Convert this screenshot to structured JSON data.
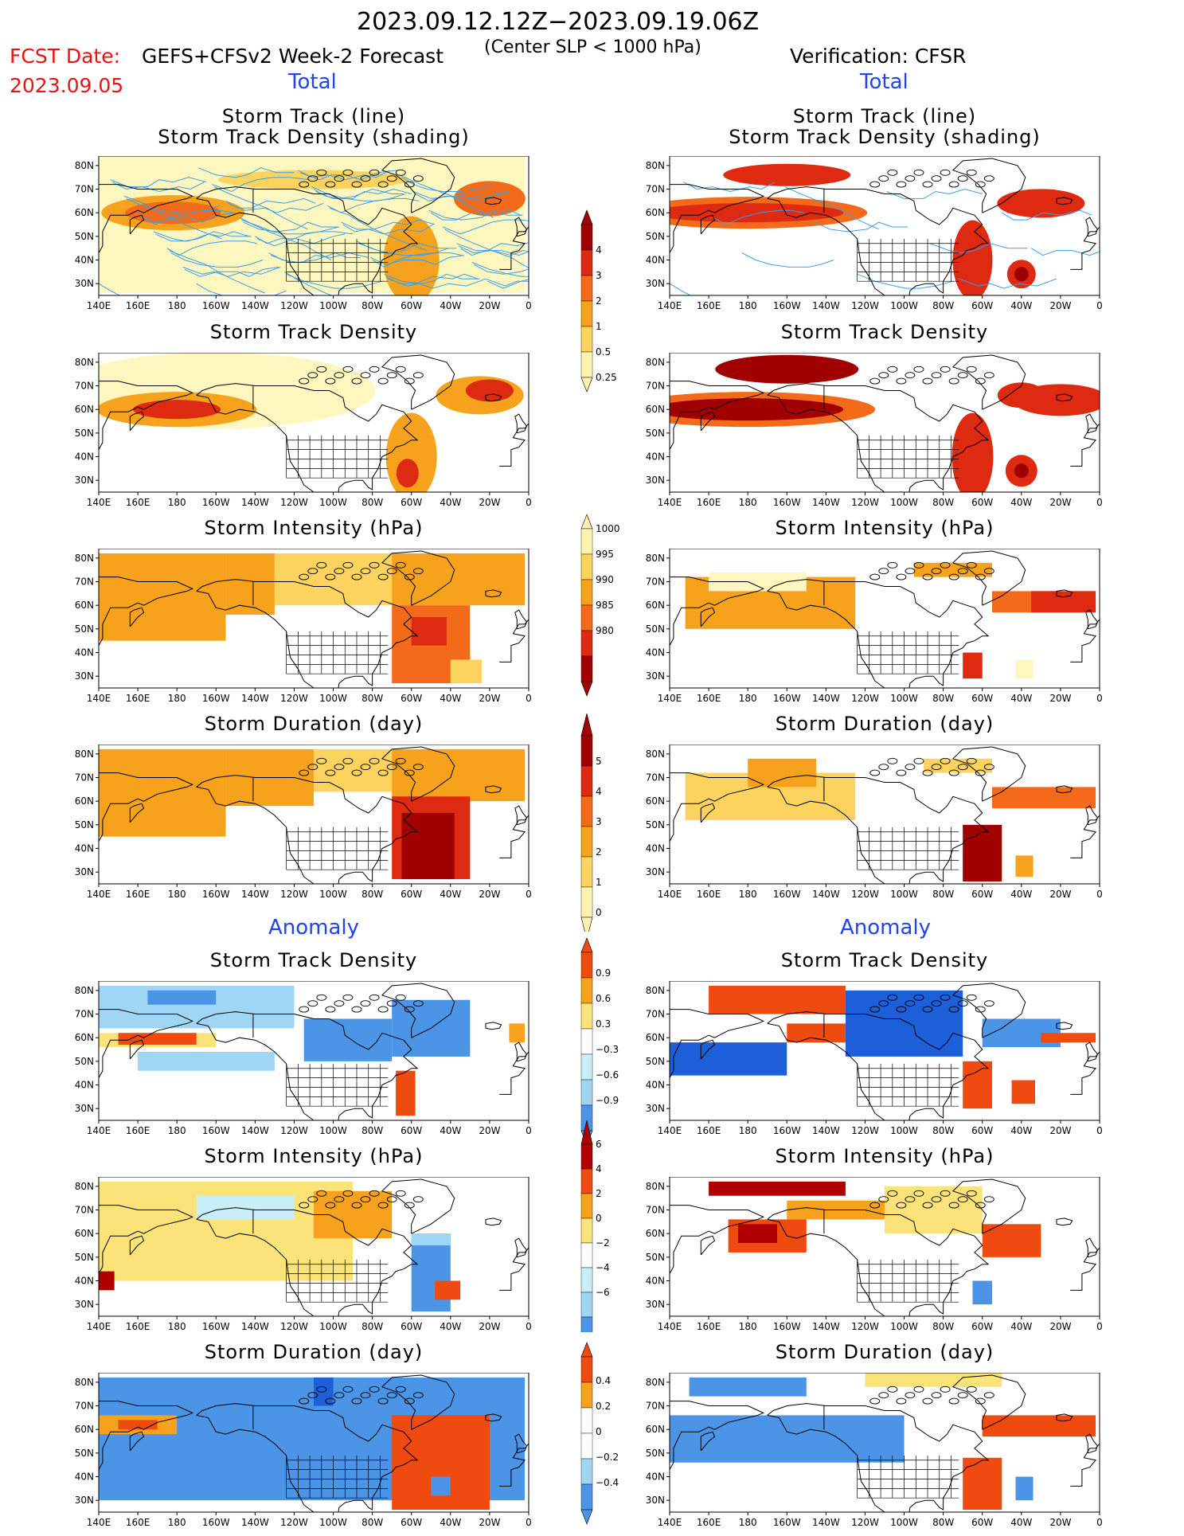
{
  "header": {
    "date_range": "2023.09.12.12Z−2023.09.19.06Z",
    "fcst_label": "FCST Date:",
    "fcst_title": "GEFS+CFSv2 Week-2 Forecast",
    "fcst_date": "2023.09.05",
    "criterion": "(Center SLP < 1000 hPa)",
    "verification": "Verification: CFSR"
  },
  "sections": {
    "total": "Total",
    "anomaly": "Anomaly"
  },
  "panel_titles": {
    "track_line": "Storm Track (line)",
    "track_shading": "Storm Track Density (shading)",
    "track_density": "Storm Track Density",
    "intensity": "Storm Intensity (hPa)",
    "duration": "Storm Duration (day)"
  },
  "axes": {
    "lon_ticks": [
      "140E",
      "160E",
      "180",
      "160W",
      "140W",
      "120W",
      "100W",
      "80W",
      "60W",
      "40W",
      "20W",
      "0"
    ],
    "lat_ticks": [
      "80N",
      "70N",
      "60N",
      "50N",
      "40N",
      "30N"
    ]
  },
  "colorbars": {
    "density": {
      "labels": [
        "4",
        "3",
        "2",
        "1",
        "0.5",
        "0.25"
      ],
      "colors": [
        "#a00000",
        "#dd2a10",
        "#f36a1a",
        "#f7a21c",
        "#fbd35e",
        "#fff2b0"
      ]
    },
    "intensity": {
      "labels": [
        "1000",
        "995",
        "990",
        "985",
        "980"
      ],
      "colors": [
        "#fff2b0",
        "#fbd35e",
        "#f7a21c",
        "#f36a1a",
        "#dd2a10",
        "#a00000"
      ]
    },
    "duration": {
      "labels": [
        "5",
        "4",
        "3",
        "2",
        "1",
        "0"
      ],
      "colors": [
        "#a00000",
        "#dd2a10",
        "#f36a1a",
        "#f7a21c",
        "#fbd35e",
        "#fff2b0"
      ]
    },
    "anom_density": {
      "labels": [
        "0.9",
        "0.6",
        "0.3",
        "−0.3",
        "−0.6",
        "−0.9"
      ]
    },
    "anom_intensity": {
      "labels": [
        "6",
        "4",
        "2",
        "0",
        "−2",
        "−4",
        "−6"
      ]
    },
    "anom_duration": {
      "labels": [
        "0.4",
        "0.2",
        "0",
        "−0.2",
        "−0.4"
      ]
    },
    "anom_colors": [
      "#f0f0f0"
    ]
  },
  "palette": {
    "total": [
      "#fff6c0",
      "#fbd35e",
      "#f7a21c",
      "#f36a1a",
      "#dd2a10",
      "#a00000"
    ],
    "anom_pos": [
      "#fbe37a",
      "#f7a21c",
      "#ef4a10",
      "#b00000"
    ],
    "anom_neg": [
      "#c8eefa",
      "#9fd6f5",
      "#4c94e6",
      "#1d5fd8"
    ],
    "track_line": "#3aa0e8"
  }
}
